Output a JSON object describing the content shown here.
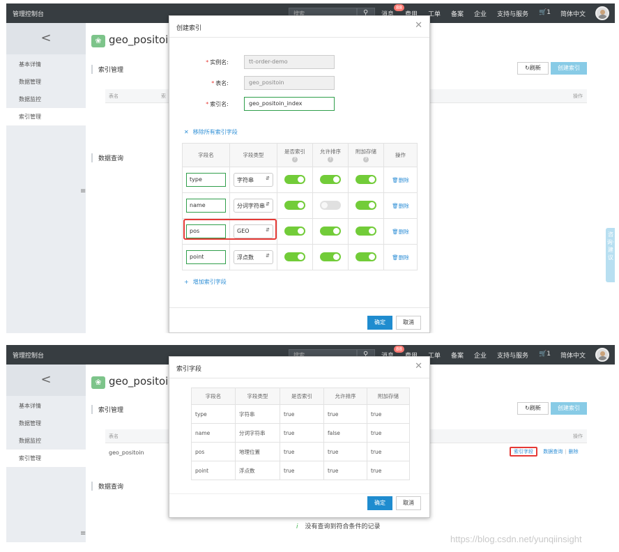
{
  "topbar": {
    "brand": "管理控制台",
    "search_placeholder": "搜索",
    "messages": "消息",
    "message_count": "88",
    "billing": "费用",
    "tickets": "工单",
    "icp": "备案",
    "enterprise": "企业",
    "support": "支持与服务",
    "cart_count": "1",
    "language": "简体中文"
  },
  "sidebar": {
    "back": "<",
    "items": [
      "基本详情",
      "数据管理",
      "数据监控",
      "索引管理"
    ],
    "collapse": "≡"
  },
  "main": {
    "app_name": "geo_positoin",
    "index_section": "索引管理",
    "query_section": "数据查询",
    "refresh": "刷新",
    "create_index": "创建索引",
    "col_table_name": "表名",
    "col_partial": "索",
    "col_actions": "操作",
    "row_table_name": "geo_positoin",
    "row_action_fields": "索引字段",
    "row_action_query": "数据查询",
    "row_action_delete": "删除",
    "empty_icon": "i",
    "empty_text": "没有查询到符合条件的记录"
  },
  "float_tab": "咨询·建议",
  "create_modal": {
    "title": "创建索引",
    "instance_label": "实例名:",
    "instance_value": "tt-order-demo",
    "table_label": "表名:",
    "table_value": "geo_positoin",
    "index_label": "索引名:",
    "index_value": "geo_positoin_index",
    "remove_all": "移除所有索引字段",
    "headers": [
      "字段名",
      "字段类型",
      "是否索引",
      "允许排序",
      "附加存储",
      "操作"
    ],
    "help_icon": "?",
    "rows": [
      {
        "name": "type",
        "type": "字符串",
        "index": true,
        "sort": true,
        "store": true
      },
      {
        "name": "name",
        "type": "分词字符串",
        "index": true,
        "sort": false,
        "store": true
      },
      {
        "name": "pos",
        "type": "GEO",
        "index": true,
        "sort": true,
        "store": true
      },
      {
        "name": "point",
        "type": "浮点数",
        "index": true,
        "sort": true,
        "store": true
      }
    ],
    "delete_label": "删除",
    "add_field": "增加索引字段",
    "confirm": "确定",
    "cancel": "取消"
  },
  "fields_modal": {
    "title": "索引字段",
    "headers": [
      "字段名",
      "字段类型",
      "是否索引",
      "允许排序",
      "附加存储"
    ],
    "rows": [
      [
        "type",
        "字符串",
        "true",
        "true",
        "true"
      ],
      [
        "name",
        "分词字符串",
        "true",
        "false",
        "true"
      ],
      [
        "pos",
        "地理位置",
        "true",
        "true",
        "true"
      ],
      [
        "point",
        "浮点数",
        "true",
        "true",
        "true"
      ]
    ],
    "confirm": "确定",
    "cancel": "取消"
  },
  "watermark": "https://blog.csdn.net/yunqiinsight",
  "colors": {
    "topbar": "#373d41",
    "toggle_on": "#72cc39",
    "primary": "#1f8ccf",
    "highlight": "#e53935",
    "link": "#2f8fd6"
  }
}
